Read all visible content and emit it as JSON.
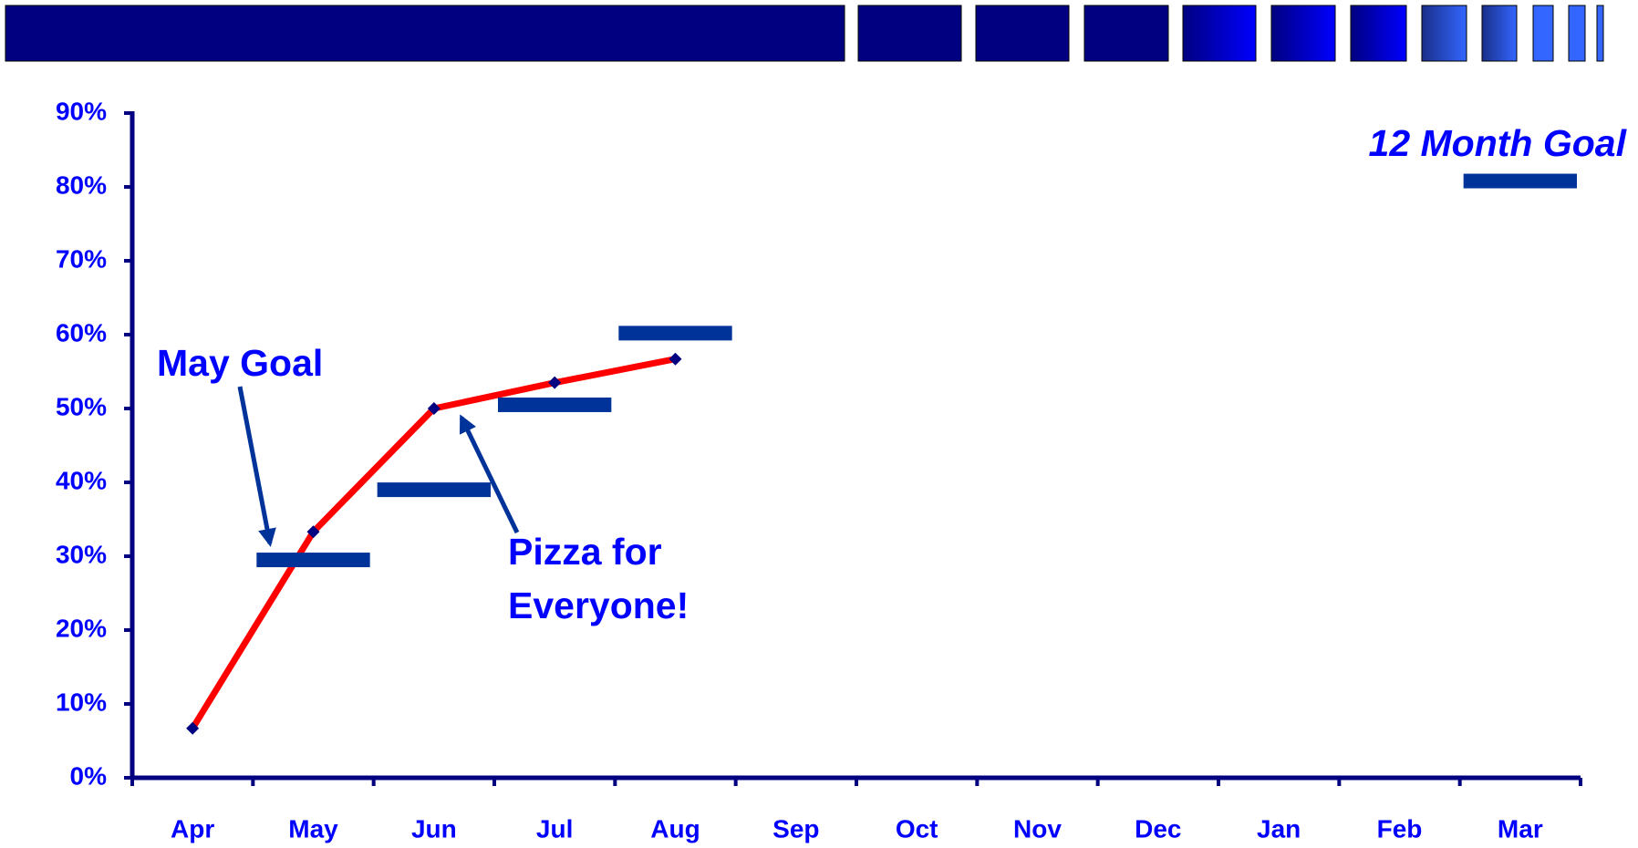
{
  "chart_data": {
    "type": "line",
    "categories": [
      "Apr",
      "May",
      "Jun",
      "Jul",
      "Aug",
      "Sep",
      "Oct",
      "Nov",
      "Dec",
      "Jan",
      "Feb",
      "Mar"
    ],
    "series": [
      {
        "color": "#ff0000",
        "marker_color": "#000080",
        "values": [
          6.7,
          33.3,
          50,
          53.5,
          56.7,
          null,
          null,
          null,
          null,
          null,
          null,
          null
        ]
      },
      {
        "color": "#003399",
        "style": "goal-bar",
        "values": [
          null,
          29.5,
          39,
          50.5,
          60.2,
          null,
          null,
          null,
          null,
          null,
          null,
          80.8
        ]
      }
    ],
    "ylim": [
      0,
      90
    ],
    "yticks": [
      {
        "value": 0,
        "label": "0%"
      },
      {
        "value": 10,
        "label": "10%"
      },
      {
        "value": 20,
        "label": "20%"
      },
      {
        "value": 30,
        "label": "30%"
      },
      {
        "value": 40,
        "label": "40%"
      },
      {
        "value": 50,
        "label": "50%"
      },
      {
        "value": 60,
        "label": "60%"
      },
      {
        "value": 70,
        "label": "70%"
      },
      {
        "value": 80,
        "label": "80%"
      },
      {
        "value": 90,
        "label": "90%"
      }
    ],
    "annotations": {
      "may_goal": "May Goal",
      "pizza": [
        "Pizza for",
        "Everyone!"
      ],
      "year_goal": "12 Month Goal"
    }
  }
}
